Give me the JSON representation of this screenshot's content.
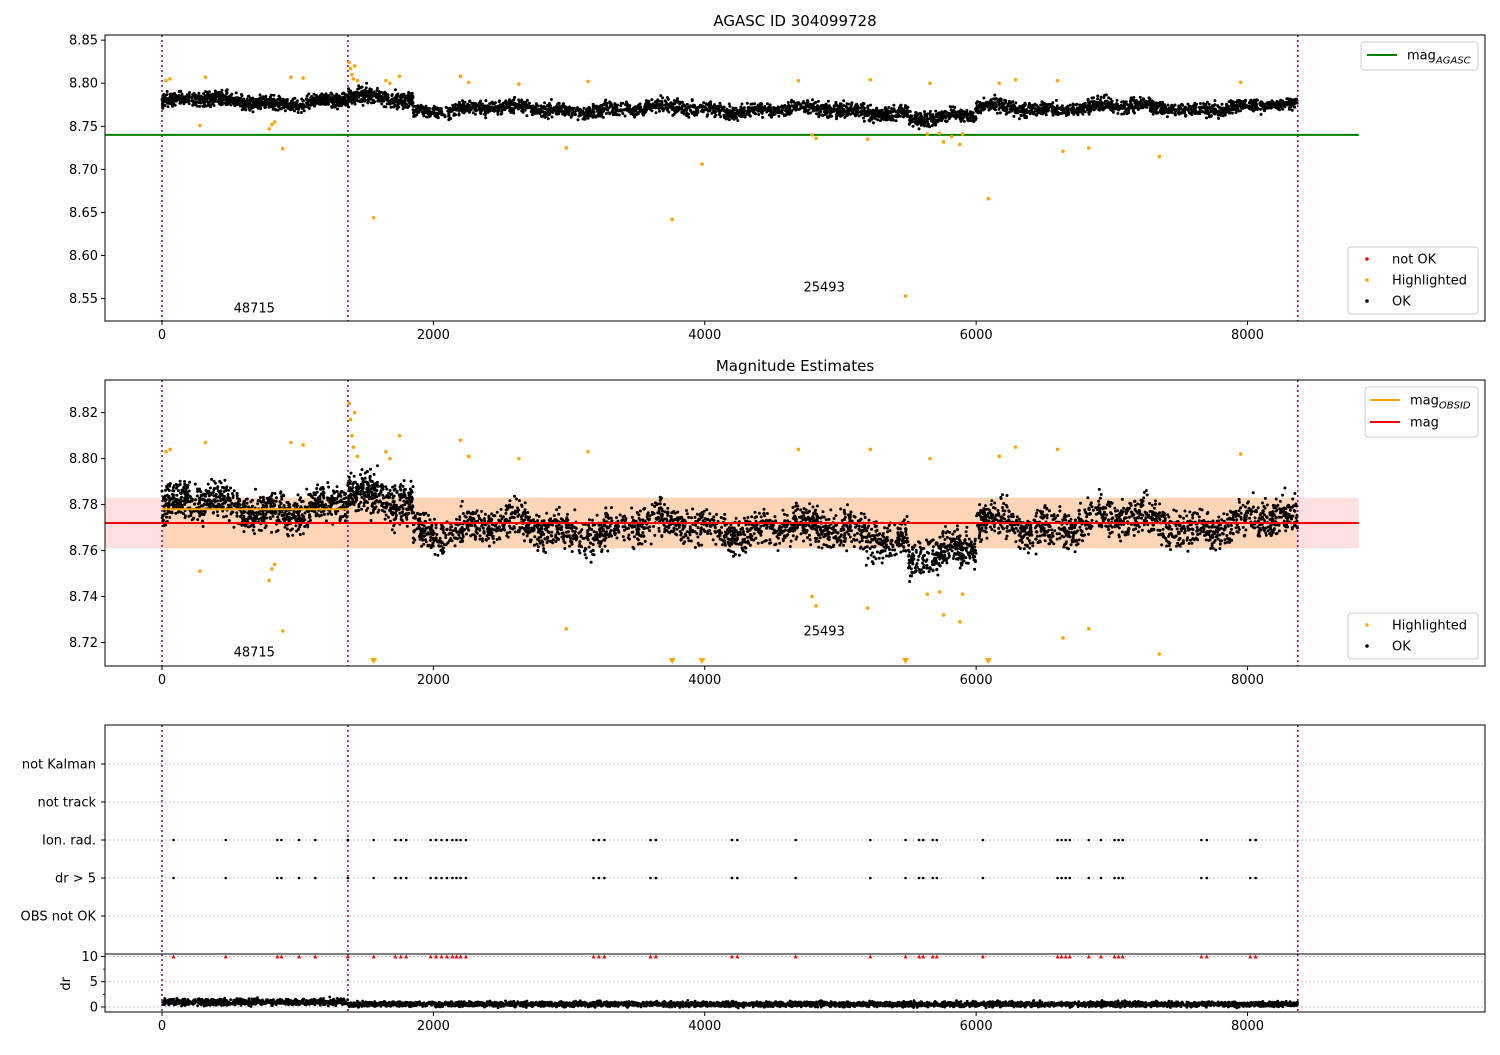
{
  "chart_data": [
    {
      "id": "agasc",
      "type": "scatter",
      "title": "AGASC ID 304099728",
      "xlim": [
        -420,
        9750
      ],
      "ylim": [
        8.524,
        8.856
      ],
      "xticks": [
        0,
        2000,
        4000,
        6000,
        8000
      ],
      "yticks": [
        8.55,
        8.6,
        8.65,
        8.7,
        8.75,
        8.8,
        8.85
      ],
      "ytick_labels": [
        "8.55",
        "8.60",
        "8.65",
        "8.70",
        "8.75",
        "8.80",
        "8.85"
      ],
      "obs_boundaries": [
        0,
        1370,
        8370
      ],
      "obsid_labels": [
        {
          "text": "48715",
          "x": 680,
          "y": 8.534
        },
        {
          "text": "25493",
          "x": 4880,
          "y": 8.558
        }
      ],
      "lines": [
        {
          "name": "mag_AGASC",
          "label_main": "mag",
          "label_sub": "AGASC",
          "color": "#008000",
          "x": [
            -420,
            8820
          ],
          "y": [
            8.74,
            8.74
          ]
        }
      ],
      "ok_series": {
        "name": "OK",
        "color": "#000000",
        "segments": [
          {
            "x0": 0,
            "x1": 1370,
            "n": 900,
            "base": 8.779,
            "spread": 0.012
          },
          {
            "x0": 1370,
            "x1": 1850,
            "n": 350,
            "base": 8.782,
            "spread": 0.014
          },
          {
            "x0": 1850,
            "x1": 4700,
            "n": 1400,
            "base": 8.77,
            "spread": 0.012
          },
          {
            "x0": 4700,
            "x1": 5500,
            "n": 450,
            "base": 8.768,
            "spread": 0.013
          },
          {
            "x0": 5500,
            "x1": 6000,
            "n": 300,
            "base": 8.76,
            "spread": 0.012
          },
          {
            "x0": 6000,
            "x1": 8370,
            "n": 1200,
            "base": 8.772,
            "spread": 0.012
          }
        ]
      },
      "highlighted": [
        {
          "x": 30,
          "y": 8.803
        },
        {
          "x": 60,
          "y": 8.805
        },
        {
          "x": 280,
          "y": 8.751
        },
        {
          "x": 320,
          "y": 8.807
        },
        {
          "x": 790,
          "y": 8.747
        },
        {
          "x": 810,
          "y": 8.752
        },
        {
          "x": 830,
          "y": 8.755
        },
        {
          "x": 890,
          "y": 8.724
        },
        {
          "x": 950,
          "y": 8.807
        },
        {
          "x": 1040,
          "y": 8.806
        },
        {
          "x": 1380,
          "y": 8.824
        },
        {
          "x": 1390,
          "y": 8.817
        },
        {
          "x": 1400,
          "y": 8.81
        },
        {
          "x": 1410,
          "y": 8.805
        },
        {
          "x": 1420,
          "y": 8.82
        },
        {
          "x": 1440,
          "y": 8.803
        },
        {
          "x": 1560,
          "y": 8.644
        },
        {
          "x": 1650,
          "y": 8.803
        },
        {
          "x": 1680,
          "y": 8.8
        },
        {
          "x": 1750,
          "y": 8.808
        },
        {
          "x": 2200,
          "y": 8.808
        },
        {
          "x": 2260,
          "y": 8.801
        },
        {
          "x": 2630,
          "y": 8.799
        },
        {
          "x": 2980,
          "y": 8.725
        },
        {
          "x": 3140,
          "y": 8.802
        },
        {
          "x": 3760,
          "y": 8.642
        },
        {
          "x": 3980,
          "y": 8.706
        },
        {
          "x": 4690,
          "y": 8.803
        },
        {
          "x": 4790,
          "y": 8.74
        },
        {
          "x": 4820,
          "y": 8.736
        },
        {
          "x": 5220,
          "y": 8.804
        },
        {
          "x": 5200,
          "y": 8.735
        },
        {
          "x": 5480,
          "y": 8.553
        },
        {
          "x": 5640,
          "y": 8.741
        },
        {
          "x": 5660,
          "y": 8.8
        },
        {
          "x": 5730,
          "y": 8.742
        },
        {
          "x": 5760,
          "y": 8.732
        },
        {
          "x": 5820,
          "y": 8.738
        },
        {
          "x": 5880,
          "y": 8.729
        },
        {
          "x": 5900,
          "y": 8.741
        },
        {
          "x": 6090,
          "y": 8.666
        },
        {
          "x": 6170,
          "y": 8.8
        },
        {
          "x": 6290,
          "y": 8.804
        },
        {
          "x": 6600,
          "y": 8.803
        },
        {
          "x": 6640,
          "y": 8.721
        },
        {
          "x": 6830,
          "y": 8.725
        },
        {
          "x": 7350,
          "y": 8.715
        },
        {
          "x": 7950,
          "y": 8.801
        }
      ],
      "legend_upper": [
        {
          "label_main": "mag",
          "label_sub": "AGASC",
          "color": "#008000",
          "kind": "line"
        }
      ],
      "legend_lower": [
        {
          "label": "not OK",
          "color": "#ff0000",
          "kind": "dot"
        },
        {
          "label": "Highlighted",
          "color": "#ffa500",
          "kind": "dot"
        },
        {
          "label": "OK",
          "color": "#000000",
          "kind": "dot"
        }
      ]
    },
    {
      "id": "magest",
      "type": "scatter",
      "title": "Magnitude Estimates",
      "xlim": [
        -420,
        9750
      ],
      "ylim": [
        8.7098,
        8.8342
      ],
      "xticks": [
        0,
        2000,
        4000,
        6000,
        8000
      ],
      "yticks": [
        8.72,
        8.74,
        8.76,
        8.78,
        8.8,
        8.82
      ],
      "ytick_labels": [
        "8.72",
        "8.74",
        "8.76",
        "8.78",
        "8.80",
        "8.82"
      ],
      "obs_boundaries": [
        0,
        1370,
        8370
      ],
      "obsid_labels": [
        {
          "text": "48715",
          "x": 680,
          "y": 8.714
        },
        {
          "text": "25493",
          "x": 4880,
          "y": 8.723
        }
      ],
      "bands": [
        {
          "color": "#ff0000",
          "opacity": 0.12,
          "x0": -420,
          "x1": 8820,
          "y0": 8.761,
          "y1": 8.783
        },
        {
          "color": "#ffa500",
          "opacity": 0.18,
          "x0": 0,
          "x1": 8370,
          "y0": 8.761,
          "y1": 8.783
        }
      ],
      "lines": [
        {
          "name": "mag_OBSID_1",
          "color": "#ffa500",
          "x": [
            0,
            1370
          ],
          "y": [
            8.778,
            8.778
          ]
        },
        {
          "name": "mag_OBSID_2",
          "color": "#ffa500",
          "x": [
            1370,
            8370
          ],
          "y": [
            8.772,
            8.772
          ]
        },
        {
          "name": "mag",
          "color": "#ff0000",
          "x": [
            -420,
            8820
          ],
          "y": [
            8.772,
            8.772
          ]
        }
      ],
      "ok_series": {
        "name": "OK",
        "color": "#000000",
        "segments": [
          {
            "x0": 0,
            "x1": 1370,
            "n": 900,
            "base": 8.779,
            "spread": 0.012
          },
          {
            "x0": 1370,
            "x1": 1850,
            "n": 350,
            "base": 8.782,
            "spread": 0.014
          },
          {
            "x0": 1850,
            "x1": 4700,
            "n": 1400,
            "base": 8.77,
            "spread": 0.012
          },
          {
            "x0": 4700,
            "x1": 5500,
            "n": 450,
            "base": 8.768,
            "spread": 0.013
          },
          {
            "x0": 5500,
            "x1": 6000,
            "n": 300,
            "base": 8.758,
            "spread": 0.012
          },
          {
            "x0": 6000,
            "x1": 8370,
            "n": 1200,
            "base": 8.772,
            "spread": 0.012
          }
        ]
      },
      "highlighted": [
        {
          "x": 30,
          "y": 8.803
        },
        {
          "x": 60,
          "y": 8.804
        },
        {
          "x": 280,
          "y": 8.751
        },
        {
          "x": 320,
          "y": 8.807
        },
        {
          "x": 790,
          "y": 8.747
        },
        {
          "x": 810,
          "y": 8.752
        },
        {
          "x": 830,
          "y": 8.754
        },
        {
          "x": 890,
          "y": 8.725
        },
        {
          "x": 950,
          "y": 8.807
        },
        {
          "x": 1040,
          "y": 8.806
        },
        {
          "x": 1380,
          "y": 8.824
        },
        {
          "x": 1390,
          "y": 8.817
        },
        {
          "x": 1400,
          "y": 8.81
        },
        {
          "x": 1410,
          "y": 8.805
        },
        {
          "x": 1420,
          "y": 8.82
        },
        {
          "x": 1440,
          "y": 8.801
        },
        {
          "x": 1650,
          "y": 8.803
        },
        {
          "x": 1680,
          "y": 8.8
        },
        {
          "x": 1750,
          "y": 8.81
        },
        {
          "x": 2200,
          "y": 8.808
        },
        {
          "x": 2260,
          "y": 8.801
        },
        {
          "x": 2630,
          "y": 8.8
        },
        {
          "x": 2980,
          "y": 8.726
        },
        {
          "x": 3140,
          "y": 8.803
        },
        {
          "x": 4690,
          "y": 8.804
        },
        {
          "x": 4790,
          "y": 8.74
        },
        {
          "x": 4820,
          "y": 8.736
        },
        {
          "x": 5200,
          "y": 8.735
        },
        {
          "x": 5220,
          "y": 8.804
        },
        {
          "x": 5640,
          "y": 8.741
        },
        {
          "x": 5660,
          "y": 8.8
        },
        {
          "x": 5730,
          "y": 8.742
        },
        {
          "x": 5760,
          "y": 8.732
        },
        {
          "x": 5880,
          "y": 8.729
        },
        {
          "x": 5900,
          "y": 8.741
        },
        {
          "x": 6170,
          "y": 8.801
        },
        {
          "x": 6290,
          "y": 8.805
        },
        {
          "x": 6600,
          "y": 8.804
        },
        {
          "x": 6640,
          "y": 8.722
        },
        {
          "x": 6830,
          "y": 8.726
        },
        {
          "x": 7350,
          "y": 8.715
        },
        {
          "x": 7950,
          "y": 8.802
        }
      ],
      "offscale_markers": [
        {
          "x": 1560,
          "y": 8.711
        },
        {
          "x": 3760,
          "y": 8.711
        },
        {
          "x": 3980,
          "y": 8.711
        },
        {
          "x": 5480,
          "y": 8.711
        },
        {
          "x": 6090,
          "y": 8.711
        }
      ],
      "legend_upper": [
        {
          "label_main": "mag",
          "label_sub": "OBSID",
          "color": "#ffa500",
          "kind": "line"
        },
        {
          "label_main": "mag",
          "label_sub": "",
          "color": "#ff0000",
          "kind": "line"
        }
      ],
      "legend_lower": [
        {
          "label": "Highlighted",
          "color": "#ffa500",
          "kind": "dot"
        },
        {
          "label": "OK",
          "color": "#000000",
          "kind": "dot"
        }
      ]
    },
    {
      "id": "flags",
      "type": "scatter",
      "xlim": [
        -420,
        9750
      ],
      "categories": [
        "not Kalman",
        "not track",
        "Ion. rad.",
        "dr > 5",
        "OBS not OK"
      ],
      "obs_boundaries": [
        0,
        1370,
        8370
      ],
      "flag_rows": {
        "Ion. rad.": [
          85,
          470,
          850,
          880,
          1010,
          1130,
          1370,
          1560,
          1720,
          1760,
          1800,
          1980,
          2020,
          2060,
          2100,
          2140,
          2170,
          2200,
          2240,
          3180,
          3220,
          3260,
          3600,
          3640,
          4200,
          4240,
          4670,
          5220,
          5480,
          5580,
          5610,
          5680,
          5710,
          6050,
          6600,
          6630,
          6660,
          6690,
          6830,
          6920,
          7020,
          7050,
          7080,
          7660,
          7700,
          8020,
          8060
        ],
        "dr > 5": [
          85,
          470,
          850,
          880,
          1010,
          1130,
          1370,
          1560,
          1720,
          1760,
          1800,
          1980,
          2020,
          2060,
          2100,
          2140,
          2170,
          2200,
          2240,
          3180,
          3220,
          3260,
          3600,
          3640,
          4200,
          4240,
          4670,
          5220,
          5480,
          5580,
          5610,
          5680,
          5710,
          6050,
          6600,
          6630,
          6660,
          6690,
          6830,
          6920,
          7020,
          7050,
          7080,
          7660,
          7700,
          8020,
          8060
        ]
      }
    },
    {
      "id": "dr",
      "type": "scatter",
      "ylabel": "dr",
      "xlim": [
        -420,
        9750
      ],
      "ylim": [
        -1,
        10.5
      ],
      "xticks": [
        0,
        2000,
        4000,
        6000,
        8000
      ],
      "yticks": [
        0,
        5,
        10
      ],
      "ytick_labels": [
        "0",
        "5",
        "10"
      ],
      "obs_boundaries": [
        0,
        1370,
        8370
      ],
      "clipped_points_x": [
        85,
        470,
        850,
        880,
        1010,
        1130,
        1370,
        1560,
        1720,
        1760,
        1800,
        1980,
        2020,
        2060,
        2100,
        2140,
        2170,
        2200,
        2240,
        3180,
        3220,
        3260,
        3600,
        3640,
        4200,
        4240,
        4670,
        5220,
        5480,
        5580,
        5610,
        5680,
        5710,
        6050,
        6600,
        6630,
        6660,
        6690,
        6830,
        6920,
        7020,
        7050,
        7080,
        7660,
        7700,
        8020,
        8060
      ],
      "clipped_value": 10,
      "series": [
        {
          "name": "dr",
          "x_range": [
            0,
            8370
          ],
          "segments": [
            {
              "x0": 0,
              "x1": 1370,
              "base": 1.0,
              "spread": 0.45
            },
            {
              "x0": 1370,
              "x1": 8370,
              "base": 0.55,
              "spread": 0.35
            }
          ]
        }
      ]
    }
  ]
}
